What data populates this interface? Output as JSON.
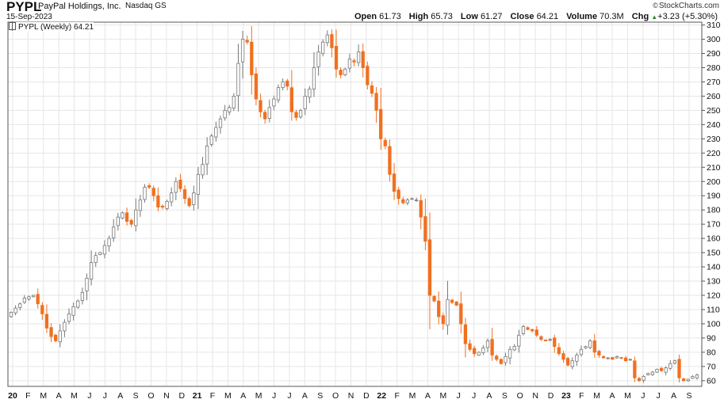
{
  "header": {
    "ticker": "PYPL",
    "company": "PayPal Holdings, Inc.",
    "exchange": "Nasdaq GS",
    "date": "15-Sep-2023",
    "brand": "StockCharts.com",
    "brand_symbol": "©",
    "open_label": "Open",
    "open": "61.73",
    "high_label": "High",
    "high": "65.73",
    "low_label": "Low",
    "low": "61.27",
    "close_label": "Close",
    "close": "64.21",
    "volume_label": "Volume",
    "volume": "70.3M",
    "chg_label": "Chg",
    "chg": "+3.23 (+5.30%)",
    "chg_icon": "triangle-up-icon"
  },
  "legend": {
    "label": "PYPL (Weekly) 64.21"
  },
  "colors": {
    "up": "#9aa0a6",
    "down": "#f07020",
    "grid": "#e6e6e6",
    "axis": "#555555"
  },
  "chart_data": {
    "type": "candlestick",
    "interval": "weekly",
    "y_range": [
      56,
      312
    ],
    "y_ticks": [
      60,
      70,
      80,
      90,
      100,
      110,
      120,
      130,
      140,
      150,
      160,
      170,
      180,
      190,
      200,
      210,
      220,
      230,
      240,
      250,
      260,
      270,
      280,
      290,
      300,
      310
    ],
    "x_labels": [
      "20",
      "F",
      "M",
      "A",
      "M",
      "J",
      "J",
      "A",
      "S",
      "O",
      "N",
      "D",
      "21",
      "F",
      "M",
      "A",
      "M",
      "J",
      "J",
      "A",
      "S",
      "O",
      "N",
      "D",
      "22",
      "F",
      "M",
      "A",
      "M",
      "J",
      "J",
      "A",
      "S",
      "O",
      "N",
      "D",
      "23",
      "F",
      "M",
      "A",
      "M",
      "J",
      "J",
      "A",
      "S"
    ],
    "bold_x_labels": [
      "20",
      "21",
      "22",
      "23"
    ],
    "weekly_close": [
      108,
      111,
      114,
      118,
      119,
      120,
      114,
      107,
      97,
      91,
      88,
      95,
      101,
      107,
      112,
      116,
      122,
      132,
      143,
      148,
      150,
      155,
      160,
      168,
      175,
      178,
      172,
      170,
      180,
      187,
      196,
      196,
      190,
      182,
      182,
      186,
      192,
      200,
      195,
      188,
      183,
      192,
      205,
      212,
      225,
      232,
      238,
      244,
      250,
      252,
      260,
      283,
      300,
      298,
      275,
      258,
      249,
      244,
      252,
      258,
      266,
      270,
      267,
      249,
      245,
      250,
      260,
      265,
      280,
      291,
      298,
      303,
      294,
      279,
      275,
      279,
      286,
      284,
      291,
      280,
      268,
      262,
      250,
      230,
      225,
      205,
      193,
      188,
      185,
      187,
      188,
      187,
      175,
      158,
      120,
      116,
      105,
      100,
      117,
      115,
      113,
      100,
      86,
      82,
      79,
      80,
      83,
      88,
      78,
      75,
      72,
      77,
      82,
      84,
      92,
      98,
      96,
      95,
      92,
      89,
      88,
      89,
      84,
      79,
      75,
      71,
      74,
      78,
      82,
      84,
      88,
      80,
      78,
      76,
      76,
      75,
      77,
      76,
      74,
      75,
      62,
      60,
      63,
      65,
      66,
      68,
      67,
      69,
      72,
      74,
      62,
      60,
      61,
      63,
      64
    ],
    "last_close": 64.21
  }
}
